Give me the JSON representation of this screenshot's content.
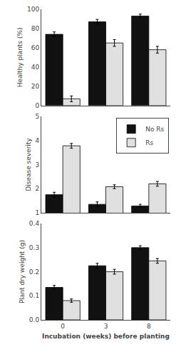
{
  "chart_data": [
    {
      "type": "bar",
      "ylabel": "Healthy plants (%)",
      "categories": [
        "0",
        "3",
        "8"
      ],
      "series": [
        {
          "name": "No Rs",
          "color": "#111111",
          "values": [
            74,
            87,
            93
          ],
          "errors": [
            2.5,
            2.5,
            2.0
          ]
        },
        {
          "name": "Rs",
          "color": "#e0e0e0",
          "values": [
            7,
            65,
            58
          ],
          "errors": [
            3.0,
            3.5,
            3.5
          ]
        }
      ],
      "ylim": [
        0,
        100
      ],
      "yticks": [
        0,
        20,
        40,
        60,
        80,
        100
      ],
      "grid": false,
      "tick_labels": "y"
    },
    {
      "type": "bar",
      "ylabel": "Disease severity",
      "categories": [
        "0",
        "3",
        "8"
      ],
      "series": [
        {
          "name": "No Rs",
          "color": "#111111",
          "values": [
            1.75,
            1.35,
            1.28
          ],
          "errors": [
            0.1,
            0.1,
            0.07
          ]
        },
        {
          "name": "Rs",
          "color": "#e0e0e0",
          "values": [
            3.78,
            2.08,
            2.2
          ],
          "errors": [
            0.1,
            0.08,
            0.1
          ]
        }
      ],
      "ylim": [
        1,
        5
      ],
      "yticks": [
        1,
        2,
        3,
        4,
        5
      ],
      "grid": false,
      "legend": "upper right",
      "tick_labels": "y"
    },
    {
      "type": "bar",
      "ylabel": "Plant dry weight (g)",
      "xlabel": "Incubation (weeks) before planting",
      "categories": [
        "0",
        "3",
        "8"
      ],
      "series": [
        {
          "name": "No Rs",
          "color": "#111111",
          "values": [
            0.135,
            0.225,
            0.3
          ],
          "errors": [
            0.008,
            0.01,
            0.008
          ]
        },
        {
          "name": "Rs",
          "color": "#e0e0e0",
          "values": [
            0.08,
            0.2,
            0.245
          ],
          "errors": [
            0.007,
            0.01,
            0.01
          ]
        }
      ],
      "ylim": [
        0.0,
        0.4
      ],
      "yticks": [
        {
          "value": 0.0,
          "label": "0.0"
        },
        0.1,
        0.2,
        0.3,
        0.4
      ],
      "grid": false
    }
  ]
}
